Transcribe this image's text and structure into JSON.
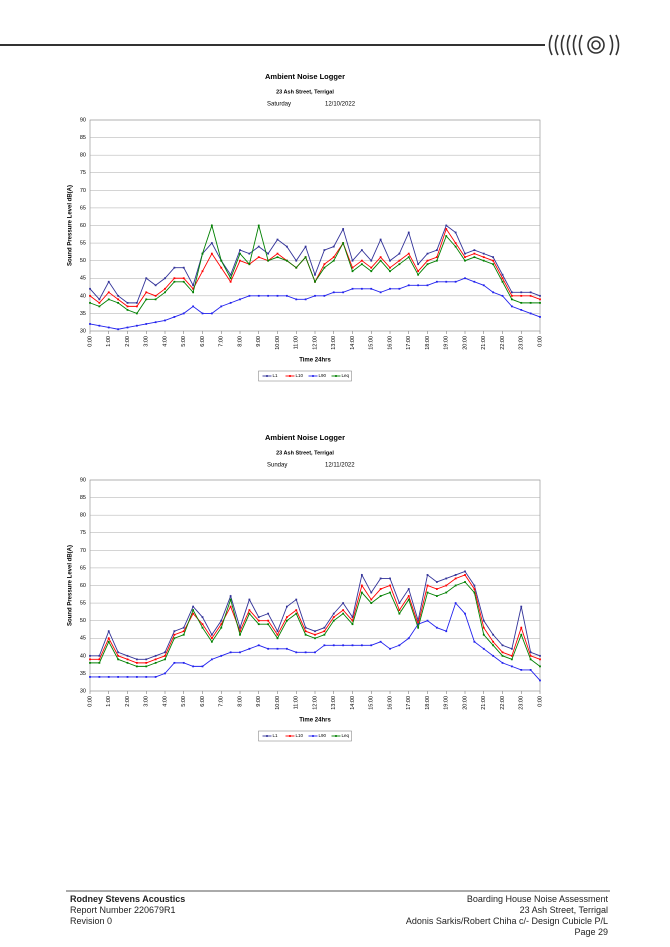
{
  "chart_data": [
    {
      "type": "line",
      "title": "Ambient Noise Logger",
      "subtitle": "23 Ash Street, Terrigal",
      "day": "Saturday",
      "date": "12/10/2022",
      "x_label": "Time 24hrs",
      "y_label": "Sound Pressure Level dB(A)",
      "categories": [
        "0:00",
        null,
        "1:00",
        null,
        "2:00",
        null,
        "3:00",
        null,
        "4:00",
        null,
        "5:00",
        null,
        "6:00",
        null,
        "7:00",
        null,
        "8:00",
        null,
        "9:00",
        null,
        "10:00",
        null,
        "11:00",
        null,
        "12:00",
        null,
        "13:00",
        null,
        "14:00",
        null,
        "15:00",
        null,
        "16:00",
        null,
        "17:00",
        null,
        "18:00",
        null,
        "19:00",
        null,
        "20:00",
        null,
        "21:00",
        null,
        "22:00",
        null,
        "23:00",
        null,
        "0:00"
      ],
      "ylim": [
        30,
        90
      ],
      "yticks": [
        30,
        35,
        40,
        45,
        50,
        55,
        60,
        65,
        70,
        75,
        80,
        85,
        90
      ],
      "grid": true,
      "legend": "bottom",
      "series": [
        {
          "name": "L1",
          "color": "#333399",
          "values": [
            42,
            39,
            44,
            40,
            38,
            38,
            45,
            43,
            45,
            48,
            48,
            43,
            52,
            55,
            50,
            46,
            53,
            52,
            54,
            52,
            56,
            54,
            50,
            54,
            46,
            53,
            54,
            59,
            50,
            53,
            50,
            56,
            50,
            52,
            58,
            49,
            52,
            53,
            60,
            58,
            52,
            53,
            52,
            51,
            46,
            41,
            41,
            41,
            40
          ]
        },
        {
          "name": "L10",
          "color": "#ff0000",
          "values": [
            40,
            38,
            41,
            39,
            37,
            37,
            41,
            40,
            42,
            45,
            45,
            42,
            47,
            52,
            48,
            44,
            50,
            49,
            51,
            50,
            52,
            50,
            48,
            51,
            44,
            49,
            51,
            55,
            48,
            50,
            48,
            51,
            48,
            50,
            52,
            47,
            50,
            51,
            59,
            55,
            51,
            52,
            51,
            50,
            45,
            40,
            40,
            40,
            39
          ]
        },
        {
          "name": "L90",
          "color": "#2222ee",
          "values": [
            32,
            31.5,
            31,
            30.5,
            31,
            31.5,
            32,
            32.5,
            33,
            34,
            35,
            37,
            35,
            35,
            37,
            38,
            39,
            40,
            40,
            40,
            40,
            40,
            39,
            39,
            40,
            40,
            41,
            41,
            42,
            42,
            42,
            41,
            42,
            42,
            43,
            43,
            43,
            44,
            44,
            44,
            45,
            44,
            43,
            41,
            40,
            37,
            36,
            35,
            34
          ]
        },
        {
          "name": "Leq",
          "color": "#008000",
          "values": [
            38,
            37,
            39,
            38,
            36,
            35,
            39,
            39,
            41,
            44,
            44,
            41,
            52,
            60,
            50,
            45,
            52,
            49,
            60,
            50,
            51,
            50,
            48,
            51,
            44,
            48,
            50,
            55,
            47,
            49,
            47,
            50,
            47,
            49,
            51,
            46,
            49,
            50,
            57,
            54,
            50,
            51,
            50,
            49,
            44,
            39,
            38,
            38,
            38
          ]
        }
      ]
    },
    {
      "type": "line",
      "title": "Ambient Noise Logger",
      "subtitle": "23 Ash Street, Terrigal",
      "day": "Sunday",
      "date": "12/11/2022",
      "x_label": "Time 24hrs",
      "y_label": "Sound Pressure Level dB(A)",
      "categories": [
        "0:00",
        null,
        "1:00",
        null,
        "2:00",
        null,
        "3:00",
        null,
        "4:00",
        null,
        "5:00",
        null,
        "6:00",
        null,
        "7:00",
        null,
        "8:00",
        null,
        "9:00",
        null,
        "10:00",
        null,
        "11:00",
        null,
        "12:00",
        null,
        "13:00",
        null,
        "14:00",
        null,
        "15:00",
        null,
        "16:00",
        null,
        "17:00",
        null,
        "18:00",
        null,
        "19:00",
        null,
        "20:00",
        null,
        "21:00",
        null,
        "22:00",
        null,
        "23:00",
        null,
        "0:00"
      ],
      "ylim": [
        30,
        90
      ],
      "yticks": [
        30,
        35,
        40,
        45,
        50,
        55,
        60,
        65,
        70,
        75,
        80,
        85,
        90
      ],
      "grid": true,
      "legend": "bottom",
      "series": [
        {
          "name": "L1",
          "color": "#333399",
          "values": [
            40,
            40,
            47,
            41,
            40,
            39,
            39,
            40,
            41,
            47,
            48,
            54,
            51,
            46,
            50,
            57,
            48,
            56,
            51,
            52,
            47,
            54,
            56,
            48,
            47,
            48,
            52,
            55,
            51,
            63,
            58,
            62,
            62,
            55,
            59,
            50,
            63,
            61,
            62,
            63,
            64,
            60,
            50,
            46,
            43,
            42,
            54,
            41,
            40
          ]
        },
        {
          "name": "L10",
          "color": "#ff0000",
          "values": [
            39,
            39,
            45,
            40,
            39,
            38,
            38,
            39,
            40,
            46,
            47,
            52,
            49,
            45,
            49,
            54,
            47,
            53,
            50,
            50,
            46,
            51,
            53,
            47,
            46,
            47,
            51,
            53,
            50,
            60,
            56,
            59,
            60,
            53,
            57,
            49,
            60,
            59,
            60,
            62,
            63,
            59,
            48,
            44,
            41,
            40,
            48,
            40,
            39
          ]
        },
        {
          "name": "L90",
          "color": "#2222ee",
          "values": [
            34,
            34,
            34,
            34,
            34,
            34,
            34,
            34,
            35,
            38,
            38,
            37,
            37,
            39,
            40,
            41,
            41,
            42,
            43,
            42,
            42,
            42,
            41,
            41,
            41,
            43,
            43,
            43,
            43,
            43,
            43,
            44,
            42,
            43,
            45,
            49,
            50,
            48,
            47,
            55,
            52,
            44,
            42,
            40,
            38,
            37,
            36,
            36,
            33
          ]
        },
        {
          "name": "Leq",
          "color": "#008000",
          "values": [
            38,
            38,
            44,
            39,
            38,
            37,
            37,
            38,
            39,
            45,
            46,
            53,
            48,
            44,
            48,
            56,
            46,
            52,
            49,
            49,
            45,
            50,
            52,
            46,
            45,
            46,
            50,
            52,
            49,
            58,
            55,
            57,
            58,
            52,
            56,
            48,
            58,
            57,
            58,
            60,
            61,
            58,
            46,
            43,
            40,
            39,
            46,
            39,
            37
          ]
        }
      ]
    }
  ],
  "footer": {
    "left": [
      "Rodney Stevens Acoustics",
      "Report Number 220679R1",
      "Revision 0"
    ],
    "right": [
      "Boarding House Noise Assessment",
      "23 Ash Street, Terrigal",
      "Adonis Sarkis/Robert Chiha c/- Design Cubicle P/L",
      "Page 29"
    ]
  }
}
